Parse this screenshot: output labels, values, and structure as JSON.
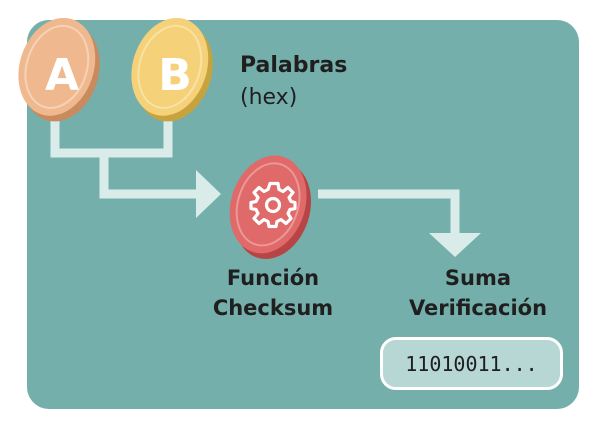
{
  "diagram": {
    "inputs": [
      {
        "letter": "A",
        "color": "#f0b88f"
      },
      {
        "letter": "B",
        "color": "#f5d27a"
      }
    ],
    "inputs_title": "Palabras",
    "inputs_subtitle": "(hex)",
    "function_label_line1": "Función",
    "function_label_line2": "Checksum",
    "output_label_line1": "Suma",
    "output_label_line2": "Verificación",
    "output_value": "11010011...",
    "colors": {
      "panel": "#75afab",
      "connector": "#d9ece9",
      "gear_coin": "#e06a6a"
    }
  }
}
